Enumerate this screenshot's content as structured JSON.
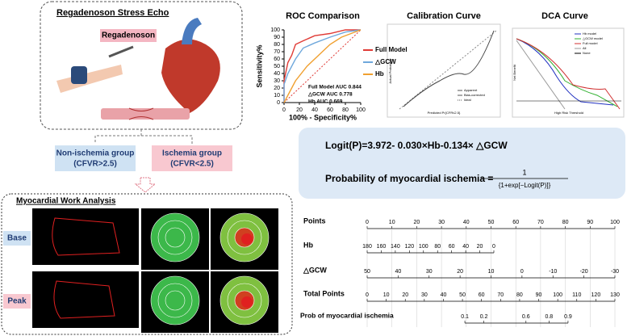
{
  "stress_echo": {
    "title": "Regadenoson Stress Echo",
    "drug": "Regadenoson"
  },
  "groups": [
    {
      "name": "Non-ischemia group",
      "criterion": "(CFVR>2.5)"
    },
    {
      "name": "Ischemia group",
      "criterion": "(CFVR<2.5)"
    }
  ],
  "work_analysis": {
    "title": "Myocardial Work Analysis",
    "rows": [
      "Base",
      "Peak"
    ]
  },
  "roc": {
    "title": "ROC Comparison",
    "ylabel": "Sensitivity%",
    "xlabel": "100% - Specificity%",
    "xlim": [
      0,
      100
    ],
    "ylim": [
      0,
      100
    ],
    "xticks": [
      0,
      20,
      40,
      60,
      80,
      100
    ],
    "yticks": [
      0,
      10,
      20,
      30,
      40,
      50,
      60,
      70,
      80,
      90,
      100
    ],
    "series": [
      {
        "name": "Full Model",
        "color": "#e03b36",
        "x": [
          0,
          0,
          5,
          10,
          15,
          25,
          40,
          60,
          80,
          100
        ],
        "y": [
          0,
          30,
          55,
          65,
          80,
          85,
          92,
          95,
          100,
          100
        ]
      },
      {
        "name": "△GCW",
        "color": "#6fa8dc",
        "x": [
          0,
          0,
          5,
          15,
          25,
          40,
          60,
          80,
          100
        ],
        "y": [
          0,
          25,
          40,
          60,
          75,
          82,
          90,
          97,
          100
        ]
      },
      {
        "name": "Hb",
        "color": "#f0a030",
        "x": [
          0,
          5,
          15,
          30,
          45,
          60,
          75,
          100
        ],
        "y": [
          0,
          10,
          30,
          50,
          65,
          80,
          90,
          100
        ]
      }
    ],
    "annotations": [
      "Full Model AUC 0.844",
      "△GCW AUC 0.778",
      "Hb AUC 0.669"
    ]
  },
  "calibration": {
    "title": "Calibration Curve",
    "ylabel": "Actual Probability",
    "xlabel": "Predicted Pr{CFR≤2.5}",
    "legend": [
      "Apparent",
      "Bias-corrected",
      "Ideal"
    ]
  },
  "dca": {
    "title": "DCA Curve",
    "ylabel": "Net Benefit",
    "xlabel": "High Risk Threshold",
    "legend": [
      "Hb model",
      "△GCW model",
      "Full model",
      "All",
      "None"
    ]
  },
  "formula": {
    "logit": "Logit(P)=3.972- 0.030×Hb-0.134× △GCW",
    "prob": "Probability of myocardial ischemia =",
    "numerator": "1",
    "denominator": "{1+exp[−Logit(P)]}"
  },
  "nomogram": {
    "rows": [
      {
        "name": "Points",
        "ticks": [
          0,
          10,
          20,
          30,
          40,
          50,
          60,
          70,
          80,
          90,
          100
        ]
      },
      {
        "name": "Hb",
        "ticks": [
          180,
          160,
          140,
          120,
          100,
          80,
          60,
          40,
          20,
          0
        ]
      },
      {
        "name": "△GCW",
        "ticks": [
          50,
          40,
          30,
          20,
          10,
          0,
          -10,
          -20,
          -30
        ]
      },
      {
        "name": "Total Points",
        "ticks": [
          0,
          10,
          20,
          30,
          40,
          50,
          60,
          70,
          80,
          90,
          100,
          110,
          120,
          130
        ]
      },
      {
        "name": "Prob of myocardial ischemia",
        "ticks": [
          0.1,
          0.2,
          0.6,
          0.8,
          0.9
        ]
      }
    ]
  }
}
